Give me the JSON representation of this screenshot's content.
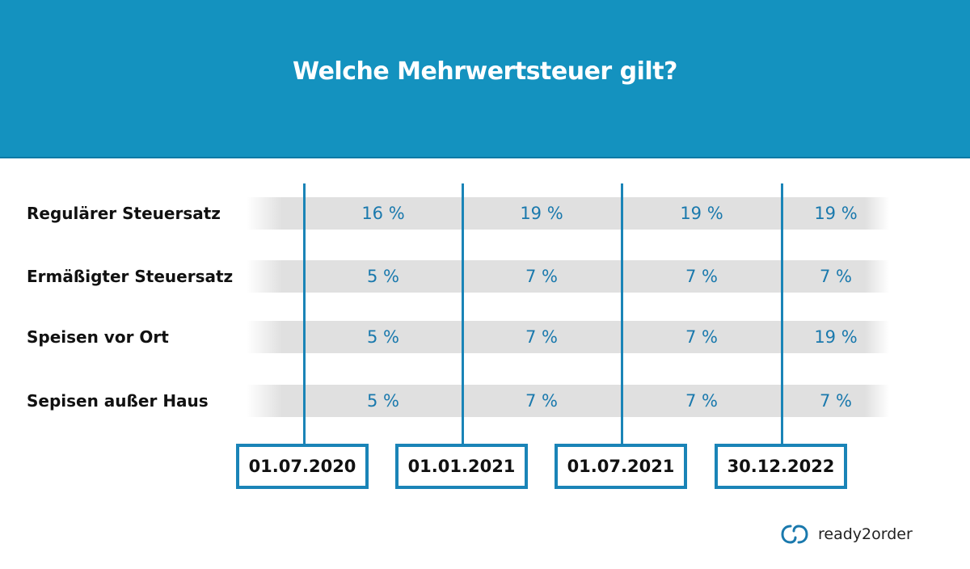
{
  "header": {
    "title": "Welche Mehrwertsteuer gilt?"
  },
  "chart_data": {
    "type": "table",
    "title": "Welche Mehrwertsteuer gilt?",
    "columns": [
      "01.07.2020",
      "01.01.2021",
      "01.07.2021",
      "30.12.2022"
    ],
    "rows": [
      {
        "label": "Regulärer Steuersatz",
        "values": [
          "16 %",
          "19 %",
          "19 %",
          "19 %"
        ]
      },
      {
        "label": "Ermäßigter Steuersatz",
        "values": [
          "5 %",
          "7 %",
          "7 %",
          "7 %"
        ]
      },
      {
        "label": "Speisen vor Ort",
        "values": [
          "5 %",
          "7 %",
          "7 %",
          "19 %"
        ]
      },
      {
        "label": "Sepisen außer Haus",
        "values": [
          "5 %",
          "7 %",
          "7 %",
          "7 %"
        ]
      }
    ]
  },
  "brand": {
    "name": "ready2order",
    "logo_icon": "linked-rings-logo-icon",
    "color": "#1a79ad"
  },
  "colors": {
    "header": "#1492bf",
    "accent": "#1a84b7",
    "value_text": "#1a79ad",
    "band": "#e0e0e0"
  }
}
